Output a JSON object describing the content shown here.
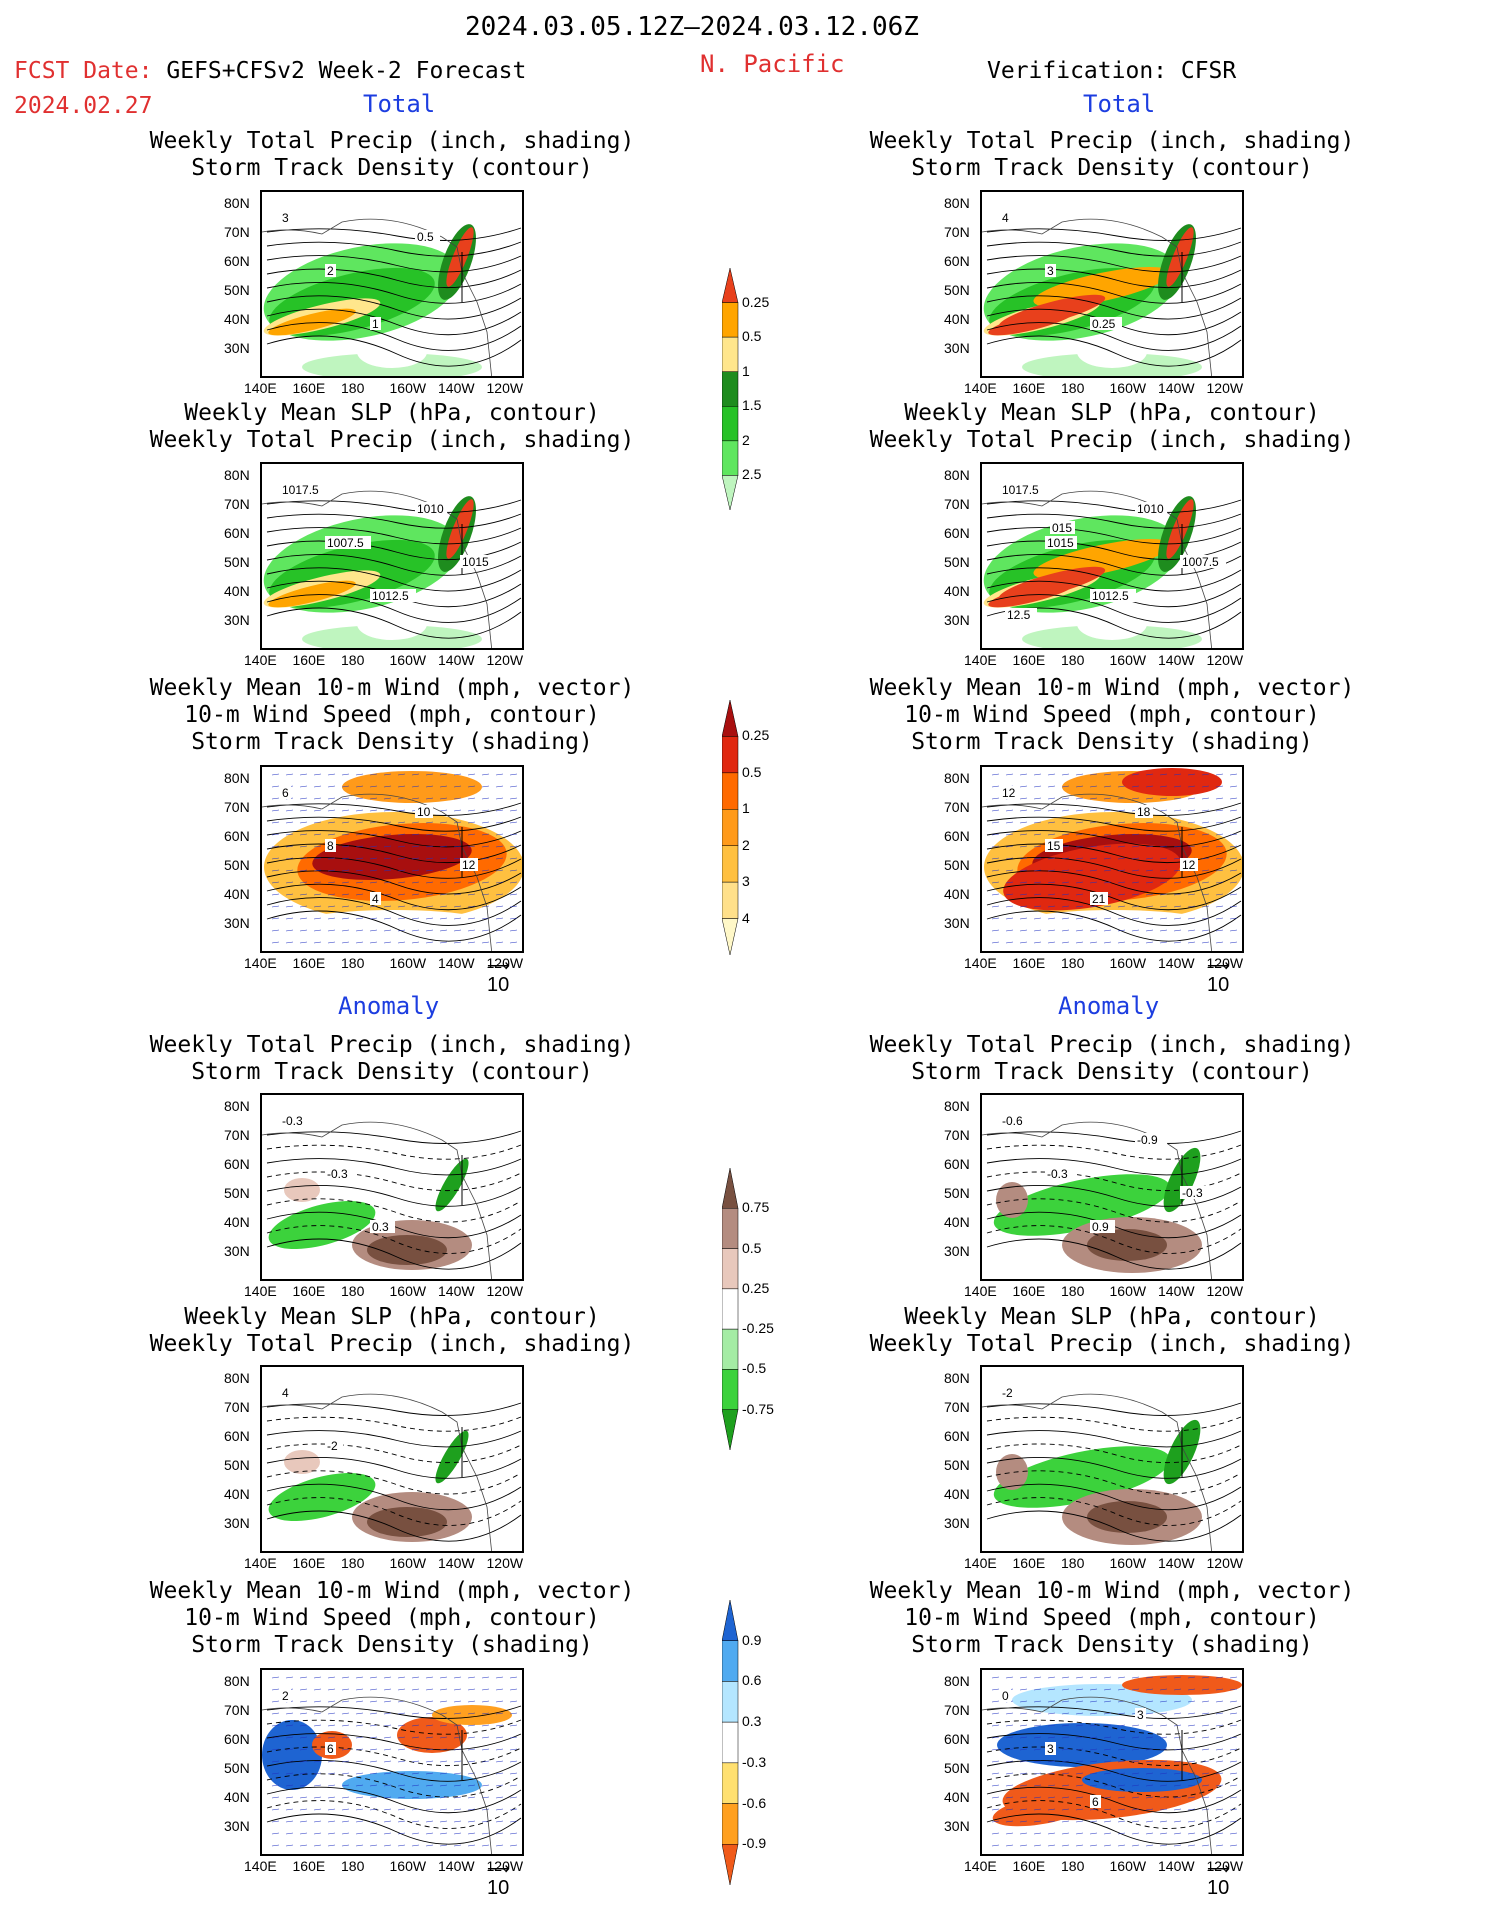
{
  "header": {
    "date_range": "2024.03.05.12Z–2024.03.12.06Z",
    "fcst_label": "FCST Date:",
    "fcst_model": "GEFS+CFSv2 Week-2 Forecast",
    "fcst_date": "2024.02.27",
    "region": "N. Pacific",
    "verification": "Verification: CFSR"
  },
  "sections": {
    "total": "Total",
    "anomaly": "Anomaly"
  },
  "panel_titles": {
    "precip_storm": [
      "Weekly Total Precip (inch, shading)",
      "Storm Track Density (contour)"
    ],
    "slp_precip": [
      "Weekly Mean SLP (hPa, contour)",
      "Weekly Total Precip (inch, shading)"
    ],
    "wind": [
      "Weekly Mean 10-m Wind (mph, vector)",
      "10-m Wind Speed (mph, contour)",
      "Storm Track Density (shading)"
    ]
  },
  "axes": {
    "lat_labels": [
      "80N",
      "70N",
      "60N",
      "50N",
      "40N",
      "30N"
    ],
    "lon_labels": [
      "140E",
      "160E",
      "180",
      "160W",
      "140W",
      "120W"
    ]
  },
  "vector_ref": "10",
  "colorbars": {
    "precip_total": {
      "labels": [
        "0.25",
        "0.5",
        "1",
        "1.5",
        "2",
        "2.5"
      ],
      "colors": [
        "#bff5bf",
        "#5fe65f",
        "#27c227",
        "#1e8c1e",
        "#ffe68c",
        "#ffa500",
        "#e8401c"
      ]
    },
    "storm_total": {
      "labels": [
        "0.25",
        "0.5",
        "1",
        "2",
        "3",
        "4"
      ],
      "colors": [
        "#fff8c8",
        "#ffe08a",
        "#ffc040",
        "#ff9a1a",
        "#ff6a00",
        "#e02810",
        "#a80f0f"
      ]
    },
    "precip_anom": {
      "labels": [
        "0.75",
        "0.5",
        "0.25",
        "-0.25",
        "-0.5",
        "-0.75"
      ],
      "colors": [
        "#1ea01e",
        "#3cd23c",
        "#a4eca4",
        "#ffffff",
        "#e8c8bc",
        "#b48c80",
        "#785040"
      ]
    },
    "storm_anom": {
      "labels": [
        "0.9",
        "0.6",
        "0.3",
        "-0.3",
        "-0.6",
        "-0.9"
      ],
      "colors": [
        "#f05a1a",
        "#ffa020",
        "#ffe070",
        "#ffffff",
        "#b4e6ff",
        "#50aaf0",
        "#1e64d2"
      ]
    }
  },
  "contour_labels": {
    "fc_total_precip": [
      "3",
      "2",
      "1",
      "0.5"
    ],
    "vf_total_precip": [
      "4",
      "3",
      "0.25"
    ],
    "fc_total_slp": [
      "1017.5",
      "1007.5",
      "1012.5",
      "1010",
      "1015"
    ],
    "vf_total_slp": [
      "1017.5",
      "1015",
      "1012.5",
      "1010",
      "1007.5",
      "12.5",
      "015"
    ],
    "fc_total_wind": [
      "6",
      "8",
      "4",
      "10",
      "12"
    ],
    "vf_total_wind": [
      "12",
      "15",
      "21",
      "18",
      "12"
    ],
    "fc_anom_precip": [
      "-0.3",
      "-0.3",
      "0.3"
    ],
    "vf_anom_precip": [
      "-0.6",
      "-0.3",
      "0.9",
      "-0.9",
      "-0.3"
    ],
    "fc_anom_slp": [
      "4",
      "-2"
    ],
    "vf_anom_slp": [
      "-2"
    ],
    "fc_anom_wind": [
      "2",
      "6"
    ],
    "vf_anom_wind": [
      "0",
      "3",
      "6",
      "3"
    ]
  }
}
